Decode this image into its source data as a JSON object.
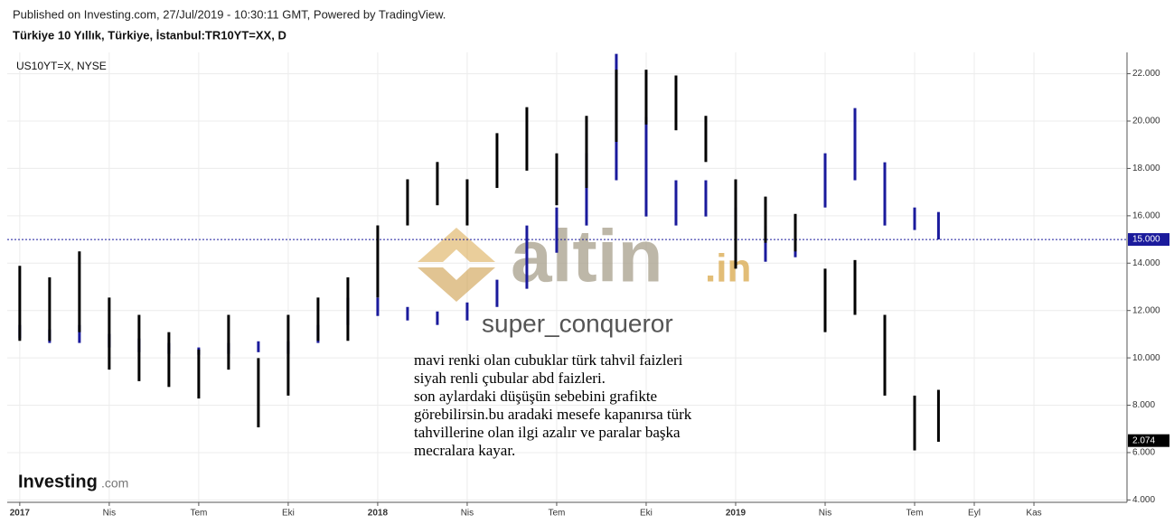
{
  "header": {
    "published": "Published on Investing.com, 27/Jul/2019 - 10:30:11 GMT, Powered by TradingView.",
    "title": "Türkiye 10 Yıllık, Türkiye, İstanbul:TR10YT=XX, D"
  },
  "watermark": {
    "brand": "altin",
    "suffix": ".in",
    "user": "super_conqueror"
  },
  "annotation": [
    "mavi renki olan cubuklar türk tahvil faizleri",
    "siyah renli çubular abd faizleri.",
    "son aylardaki düşüşün sebebini grafikte",
    "görebilirsin.bu aradaki mesefe kapanırsa türk",
    "tahvillerine olan ilgi azalır ve paralar başka",
    "mecralara kayar."
  ],
  "logo": {
    "name": "Investing",
    "suffix": ".com"
  },
  "chart_data": {
    "type": "ohlc",
    "xlim": [
      -0.42,
      37.12
    ],
    "xticks": [
      {
        "value": 0,
        "label": "2017"
      },
      {
        "value": 3,
        "label": "Nis"
      },
      {
        "value": 6,
        "label": "Tem"
      },
      {
        "value": 9,
        "label": "Eki"
      },
      {
        "value": 12,
        "label": "2018"
      },
      {
        "value": 15,
        "label": "Nis"
      },
      {
        "value": 18,
        "label": "Tem"
      },
      {
        "value": 21,
        "label": "Eki"
      },
      {
        "value": 24,
        "label": "2019"
      },
      {
        "value": 27,
        "label": "Nis"
      },
      {
        "value": 30,
        "label": "Tem"
      },
      {
        "value": 32,
        "label": "Eyl"
      },
      {
        "value": 34,
        "label": "Kas"
      }
    ],
    "ylim": [
      3.9,
      22.9
    ],
    "yticks": [
      {
        "value": 4,
        "label": "4.000"
      },
      {
        "value": 6,
        "label": "6.000"
      },
      {
        "value": 8,
        "label": "8.000"
      },
      {
        "value": 10,
        "label": "10.000"
      },
      {
        "value": 12,
        "label": "12.000"
      },
      {
        "value": 14,
        "label": "14.000"
      },
      {
        "value": 16,
        "label": "16.000"
      },
      {
        "value": 18,
        "label": "18.000"
      },
      {
        "value": 20,
        "label": "20.000"
      },
      {
        "value": 22,
        "label": "22.000"
      }
    ],
    "y2lim": [
      1.86,
      3.42
    ],
    "grid": true,
    "series": [
      {
        "color": "#1a1a9c",
        "x": [
          0,
          1,
          2,
          3,
          4,
          5,
          6,
          7,
          8,
          9,
          10,
          11,
          12,
          13,
          14,
          15,
          16,
          17,
          18,
          19,
          20,
          21,
          22,
          23,
          24,
          25,
          26,
          27,
          28,
          29,
          30,
          30.8
        ],
        "high": [
          11.39,
          11.2,
          11.39,
          11.01,
          10.82,
          10.63,
          10.44,
          10.63,
          10.7,
          10.7,
          11.39,
          12.54,
          12.54,
          12.15,
          11.96,
          12.34,
          13.3,
          15.59,
          16.35,
          18.64,
          22.84,
          20.17,
          17.5,
          17.5,
          16.35,
          15.59,
          15.4,
          18.64,
          20.55,
          18.26,
          16.35,
          16.16
        ],
        "low": [
          10.82,
          10.63,
          10.63,
          10.44,
          10.24,
          10.17,
          10.13,
          10.17,
          10.24,
          10.17,
          10.63,
          11.39,
          11.77,
          11.58,
          11.39,
          11.58,
          12.15,
          12.92,
          14.44,
          15.59,
          17.5,
          15.97,
          15.59,
          15.97,
          15.21,
          14.06,
          14.25,
          16.35,
          17.5,
          15.59,
          15.4,
          15.0
        ],
        "last_value": 15.0,
        "last_label": "15.000"
      },
      {
        "name": "US10YT=X, NYSE",
        "color": "#000000",
        "axis": "y2",
        "x": [
          0,
          1,
          2,
          3,
          4,
          5,
          6,
          7,
          8,
          9,
          10,
          11,
          12,
          13,
          14,
          15,
          16,
          17,
          18,
          19,
          20,
          21,
          22,
          23,
          24,
          25,
          26,
          27,
          28,
          29,
          30,
          30.8
        ],
        "high": [
          2.68,
          2.64,
          2.73,
          2.57,
          2.51,
          2.45,
          2.39,
          2.51,
          2.36,
          2.51,
          2.57,
          2.64,
          2.82,
          2.98,
          3.04,
          2.98,
          3.14,
          3.23,
          3.07,
          3.2,
          3.36,
          3.36,
          3.34,
          3.2,
          2.98,
          2.92,
          2.86,
          2.67,
          2.7,
          2.51,
          2.23,
          2.25
        ],
        "low": [
          2.42,
          2.42,
          2.45,
          2.32,
          2.28,
          2.26,
          2.22,
          2.32,
          2.12,
          2.23,
          2.42,
          2.42,
          2.57,
          2.82,
          2.89,
          2.82,
          2.95,
          3.01,
          2.89,
          2.95,
          3.11,
          3.17,
          3.15,
          3.04,
          2.67,
          2.76,
          2.73,
          2.45,
          2.51,
          2.23,
          2.04,
          2.07
        ],
        "last_value": 2.074,
        "last_label": "2.074"
      }
    ]
  }
}
